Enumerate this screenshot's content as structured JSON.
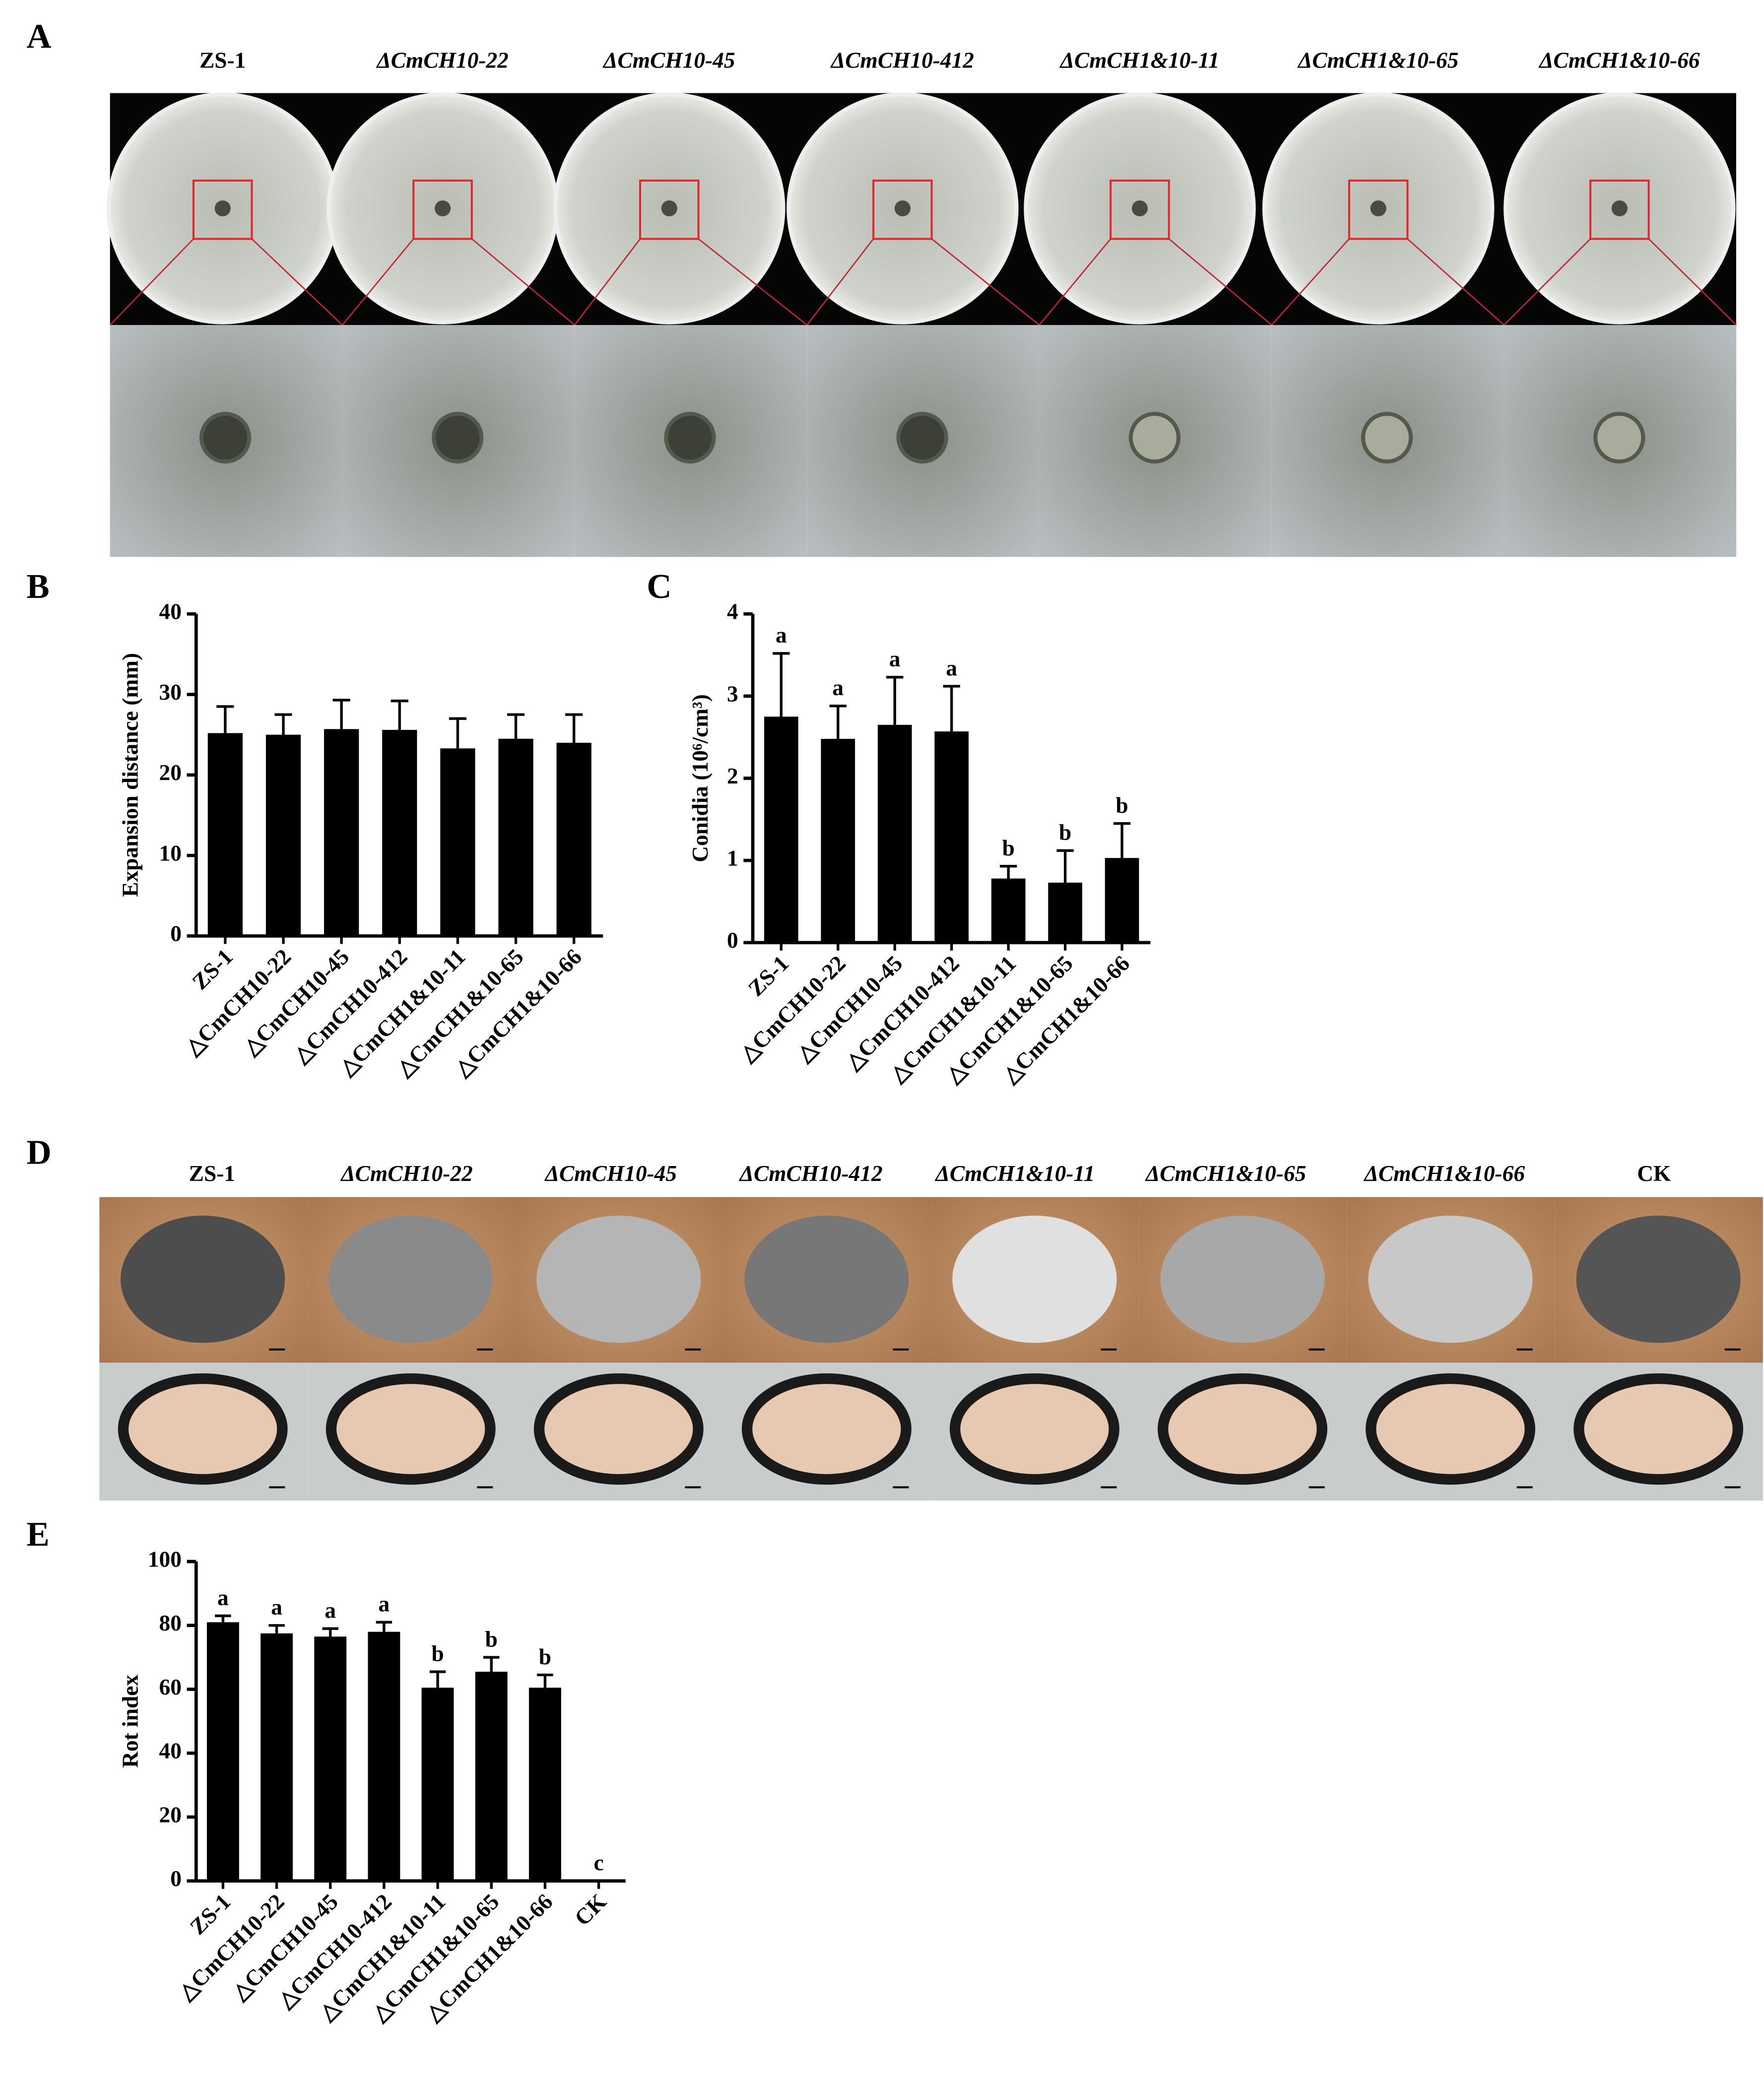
{
  "figure": {
    "A": {
      "label": "A",
      "columns": [
        "ZS-1",
        "ΔCmCH10-22",
        "ΔCmCH10-45",
        "ΔCmCH10-412",
        "ΔCmCH1&10-11",
        "ΔCmCH1&10-65",
        "ΔCmCH1&10-66"
      ]
    },
    "D": {
      "label": "D",
      "columns": [
        "ZS-1",
        "ΔCmCH10-22",
        "ΔCmCH10-45",
        "ΔCmCH10-412",
        "ΔCmCH1&10-11",
        "ΔCmCH1&10-65",
        "ΔCmCH1&10-66",
        "CK"
      ]
    }
  },
  "chart_data": [
    {
      "type": "bar",
      "panel_label": "B",
      "y_label": "Expansion distance (mm)",
      "color": "#000000",
      "categories": [
        "ZS-1",
        "△CmCH10-22",
        "△CmCH10-45",
        "△CmCH10-412",
        "△CmCH1&10-11",
        "△CmCH1&10-65",
        "△CmCH1&10-66"
      ],
      "values": [
        25.2,
        25.0,
        25.7,
        25.6,
        23.3,
        24.5,
        24.0
      ],
      "errors": [
        3.3,
        2.5,
        3.6,
        3.6,
        3.7,
        3.0,
        3.5
      ],
      "ylim": [
        0,
        40
      ],
      "yticks": [
        0,
        10,
        20,
        30,
        40
      ]
    },
    {
      "type": "bar",
      "panel_label": "C",
      "y_label": "Conidia (10⁶/cm³)",
      "color": "#000000",
      "categories": [
        "ZS-1",
        "△CmCH10-22",
        "△CmCH10-45",
        "△CmCH10-412",
        "△CmCH1&10-11",
        "△CmCH1&10-65",
        "△CmCH1&10-66"
      ],
      "values": [
        2.75,
        2.48,
        2.65,
        2.57,
        0.78,
        0.73,
        1.03
      ],
      "errors": [
        0.77,
        0.4,
        0.58,
        0.55,
        0.15,
        0.39,
        0.42
      ],
      "significance_labels": [
        "a",
        "a",
        "a",
        "a",
        "b",
        "b",
        "b"
      ],
      "ylim": [
        0,
        4
      ],
      "yticks": [
        0,
        1,
        2,
        3,
        4
      ]
    },
    {
      "type": "bar",
      "panel_label": "E",
      "y_label": "Rot index",
      "color": "#000000",
      "categories": [
        "ZS-1",
        "△CmCH10-22",
        "△CmCH10-45",
        "△CmCH10-412",
        "△CmCH1&10-11",
        "△CmCH1&10-65",
        "△CmCH1&10-66",
        "CK"
      ],
      "values": [
        81,
        77.5,
        76.5,
        78,
        60.5,
        65.5,
        60.5,
        0
      ],
      "errors": [
        2,
        2.5,
        2.5,
        3,
        5,
        4.5,
        4,
        0
      ],
      "significance_labels": [
        "a",
        "a",
        "a",
        "a",
        "b",
        "b",
        "b",
        "c"
      ],
      "ylim": [
        0,
        100
      ],
      "yticks": [
        0,
        20,
        40,
        60,
        80,
        100
      ]
    }
  ]
}
